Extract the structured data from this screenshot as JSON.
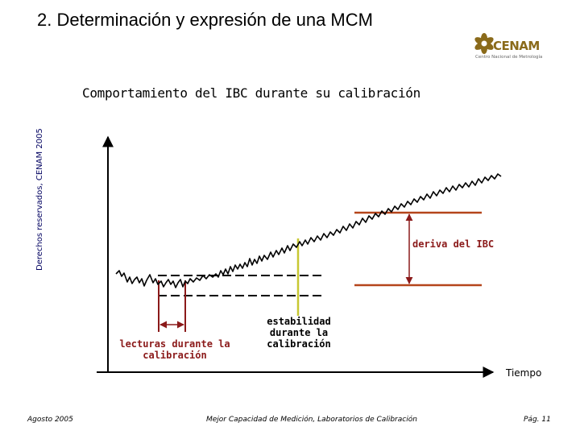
{
  "slide": {
    "title": "2. Determinación y expresión de una MCM",
    "subtitle": "Comportamiento del IBC durante su calibración",
    "vertical_note": "Derechos reservados, CENAM 2005"
  },
  "logo": {
    "name": "CENAM",
    "tagline": "Centro Nacional de Metrología",
    "icon": "flower-logo-icon",
    "color": "#8a6a1a"
  },
  "diagram": {
    "labels": {
      "readings": "lecturas durante la calibración",
      "stability": "estabilidad durante la calibración",
      "drift": "deriva del IBC",
      "time_axis": "Tiempo"
    },
    "colors": {
      "signal": "#000000",
      "drift_lines": "#b5451b",
      "readings_arrow": "#8b1a1a",
      "stability_line": "#c8c832",
      "axes": "#000000"
    }
  },
  "footer": {
    "date": "Agosto 2005",
    "center": "Mejor Capacidad de Medición, Laboratorios de Calibración",
    "page": "Pág. 11"
  }
}
